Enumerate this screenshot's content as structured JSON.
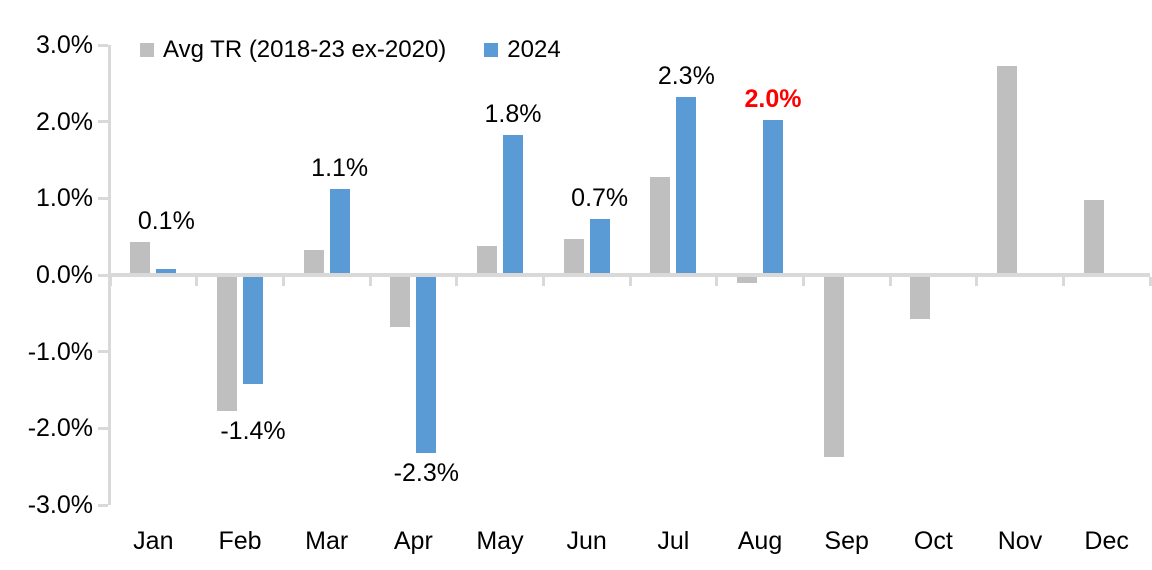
{
  "legend": {
    "series1_label": "Avg TR (2018-23 ex-2020)",
    "series2_label": "2024"
  },
  "colors": {
    "gray_series": "#bfbfbf",
    "blue_series": "#5b9bd5",
    "axis": "#d9d9d9",
    "text": "#000000",
    "highlight_red": "#ff0000"
  },
  "chart_data": {
    "type": "bar",
    "title": "",
    "xlabel": "",
    "ylabel": "",
    "categories": [
      "Jan",
      "Feb",
      "Mar",
      "Apr",
      "May",
      "Jun",
      "Jul",
      "Aug",
      "Sep",
      "Oct",
      "Nov",
      "Dec"
    ],
    "series": [
      {
        "name": "Avg TR (2018-23 ex-2020)",
        "color": "#bfbfbf",
        "values": [
          0.4,
          -1.75,
          0.3,
          -0.65,
          0.35,
          0.45,
          1.25,
          -0.08,
          -2.35,
          -0.55,
          2.7,
          0.95
        ]
      },
      {
        "name": "2024",
        "color": "#5b9bd5",
        "values": [
          0.05,
          -1.4,
          1.1,
          -2.3,
          1.8,
          0.7,
          2.3,
          2.0,
          null,
          null,
          null,
          null
        ]
      }
    ],
    "data_labels": [
      {
        "category": "Jan",
        "text": "0.1%",
        "color": "#000000",
        "bold": false
      },
      {
        "category": "Feb",
        "text": "-1.4%",
        "color": "#000000",
        "bold": false
      },
      {
        "category": "Mar",
        "text": "1.1%",
        "color": "#000000",
        "bold": false
      },
      {
        "category": "Apr",
        "text": "-2.3%",
        "color": "#000000",
        "bold": false
      },
      {
        "category": "May",
        "text": "1.8%",
        "color": "#000000",
        "bold": false
      },
      {
        "category": "Jun",
        "text": "0.7%",
        "color": "#000000",
        "bold": false
      },
      {
        "category": "Jul",
        "text": "2.3%",
        "color": "#000000",
        "bold": false
      },
      {
        "category": "Aug",
        "text": "2.0%",
        "color": "#ff0000",
        "bold": true
      }
    ],
    "ylim": [
      -3,
      3
    ],
    "ytick_step": 1,
    "ytick_labels": [
      "3.0%",
      "2.0%",
      "1.0%",
      "0.0%",
      "-1.0%",
      "-2.0%",
      "-3.0%"
    ],
    "grid": false,
    "legend_position": "top"
  }
}
